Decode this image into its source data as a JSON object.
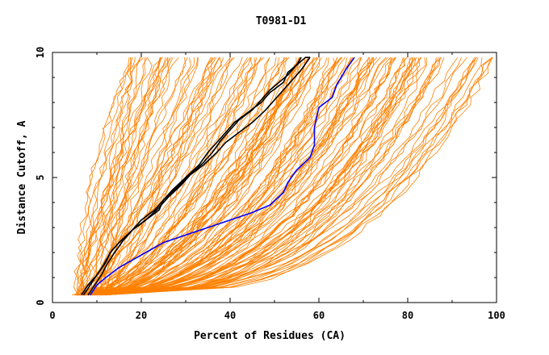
{
  "chart_data": {
    "type": "line",
    "title": "T0981-D1",
    "xlabel": "Percent of Residues (CA)",
    "ylabel": "Distance Cutoff, A",
    "xlim": [
      0,
      100
    ],
    "ylim": [
      0,
      10
    ],
    "x_ticks": [
      "0",
      "20",
      "40",
      "60",
      "80",
      "100"
    ],
    "y_ticks": [
      "0",
      "5",
      "10"
    ],
    "grid": false,
    "colors": {
      "background": "#ffffff",
      "axes": "#000000",
      "many_models": "#ff8000",
      "highlight_black": "#000000",
      "highlight_blue": "#0000ff"
    },
    "series": [
      {
        "color": "#0000ff",
        "x": [
          8.5,
          10,
          12,
          15,
          18,
          21,
          25,
          30,
          35,
          40,
          45,
          49,
          52,
          53,
          55,
          58,
          59,
          59,
          60,
          63,
          64,
          66,
          68
        ],
        "y": [
          0.3,
          0.7,
          1.0,
          1.4,
          1.7,
          2.0,
          2.4,
          2.7,
          3.0,
          3.3,
          3.6,
          3.9,
          4.4,
          4.8,
          5.3,
          5.8,
          6.3,
          7.0,
          7.8,
          8.2,
          8.7,
          9.3,
          9.8
        ]
      },
      {
        "color": "#000000",
        "x": [
          6.5,
          8,
          10,
          12,
          13,
          15,
          18,
          21,
          24,
          25,
          28,
          31,
          34,
          36,
          38,
          40,
          42,
          45,
          47,
          49,
          51,
          53,
          55,
          57,
          58
        ],
        "y": [
          0.3,
          0.7,
          1.1,
          1.6,
          2.0,
          2.4,
          2.9,
          3.3,
          3.7,
          4.1,
          4.6,
          5.1,
          5.6,
          6.0,
          6.5,
          6.9,
          7.3,
          7.7,
          8.1,
          8.5,
          8.8,
          9.1,
          9.5,
          9.8,
          9.8
        ]
      },
      {
        "color": "#000000",
        "x": [
          7,
          8.5,
          10,
          11.5,
          13,
          15,
          17.5,
          20,
          23,
          25,
          27,
          30,
          33,
          35,
          37,
          39,
          41,
          44,
          47,
          49,
          52,
          53,
          55,
          56
        ],
        "y": [
          0.3,
          0.7,
          1.1,
          1.5,
          2.0,
          2.4,
          2.8,
          3.3,
          3.7,
          4.1,
          4.5,
          5.0,
          5.5,
          6.0,
          6.4,
          6.8,
          7.2,
          7.6,
          8.0,
          8.4,
          8.8,
          9.2,
          9.5,
          9.8
        ]
      },
      {
        "color": "#000000",
        "x": [
          8,
          9.5,
          11,
          12.5,
          14,
          16,
          18,
          21,
          24,
          26,
          29,
          31,
          34,
          37,
          39,
          42,
          45,
          48,
          50,
          52,
          54,
          56,
          58
        ],
        "y": [
          0.3,
          0.7,
          1.1,
          1.6,
          2.0,
          2.5,
          2.9,
          3.3,
          3.8,
          4.2,
          4.7,
          5.1,
          5.5,
          6.0,
          6.4,
          6.8,
          7.2,
          7.7,
          8.1,
          8.5,
          8.9,
          9.3,
          9.8
        ]
      }
    ]
  }
}
